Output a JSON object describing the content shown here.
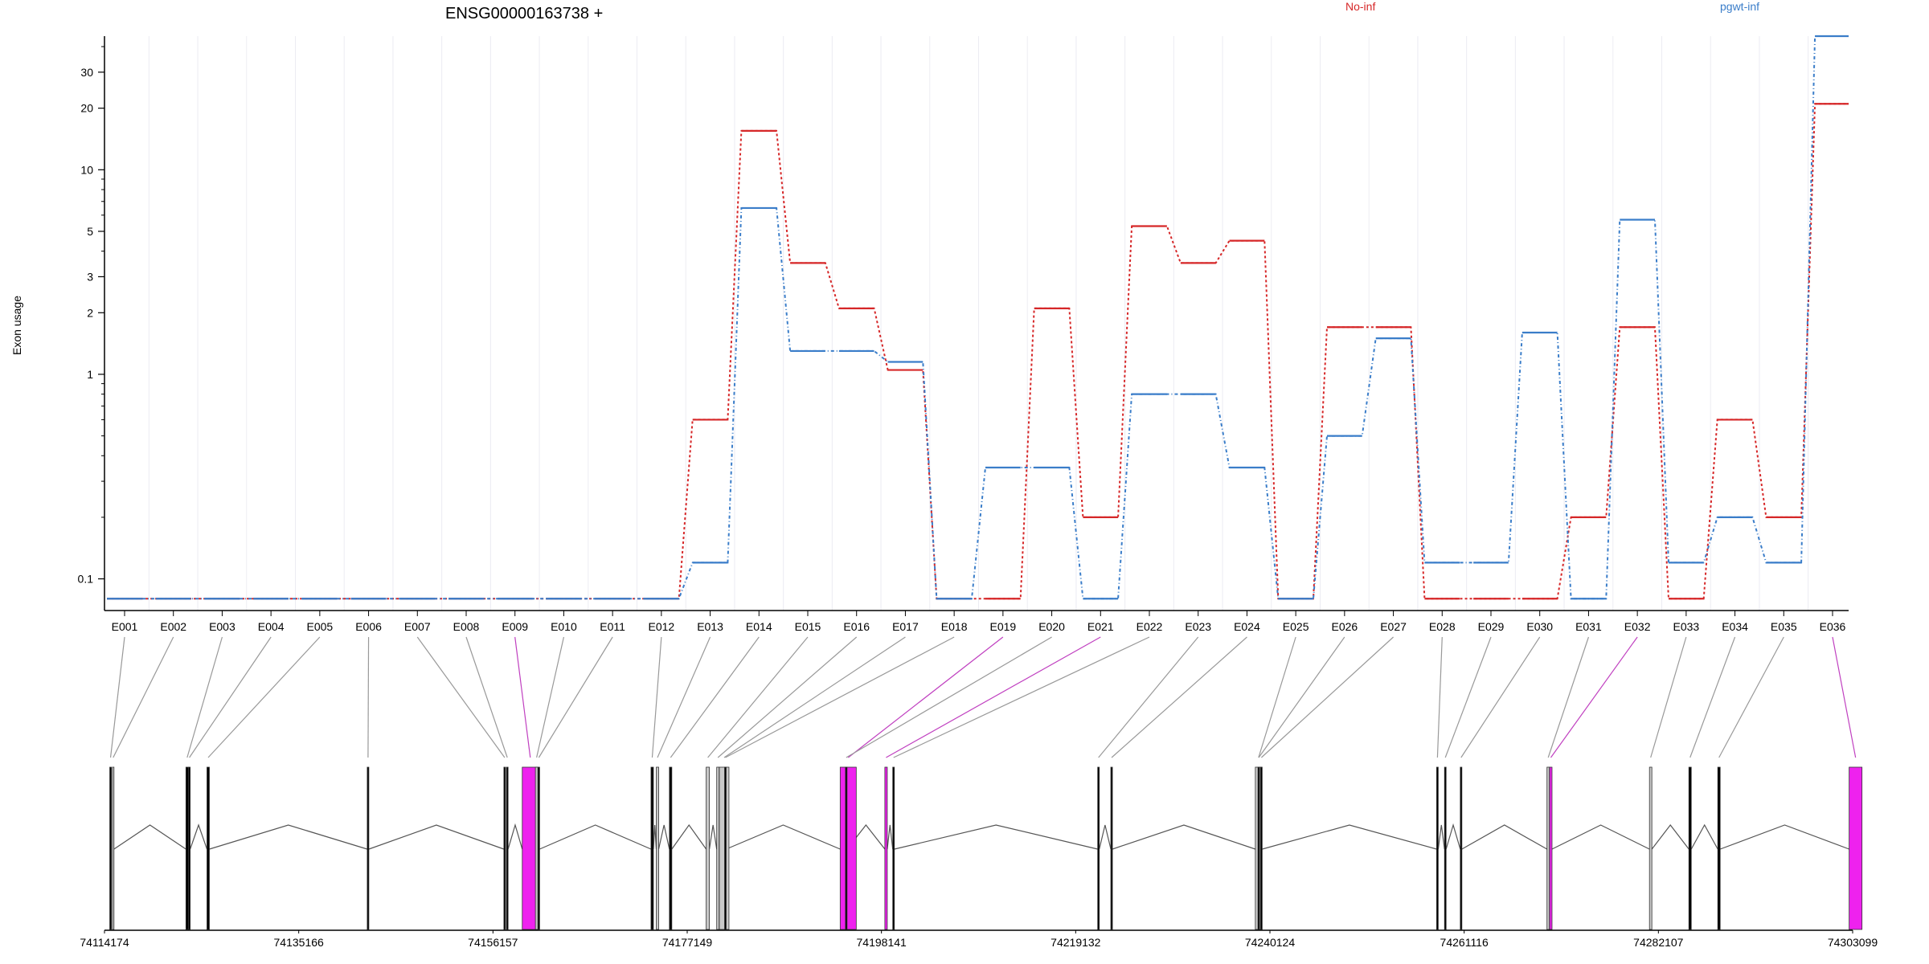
{
  "chart_data": {
    "type": "line",
    "title": "ENSG00000163738 +",
    "ylabel": "Exon usage",
    "xlabel": "",
    "y_scale": "log",
    "ylim": [
      0.07,
      45
    ],
    "yticks": [
      0.1,
      1,
      2,
      3,
      5,
      10,
      20,
      30
    ],
    "categories": [
      "E001",
      "E002",
      "E003",
      "E004",
      "E005",
      "E006",
      "E007",
      "E008",
      "E009",
      "E010",
      "E011",
      "E012",
      "E013",
      "E014",
      "E015",
      "E016",
      "E017",
      "E018",
      "E019",
      "E020",
      "E021",
      "E022",
      "E023",
      "E024",
      "E025",
      "E026",
      "E027",
      "E028",
      "E029",
      "E030",
      "E031",
      "E032",
      "E033",
      "E034",
      "E035",
      "E036"
    ],
    "series": [
      {
        "name": "No-inf",
        "color": "#d62728",
        "style": "dashed",
        "values": [
          0.08,
          0.08,
          0.08,
          0.08,
          0.08,
          0.08,
          0.08,
          0.08,
          0.08,
          0.08,
          0.08,
          0.08,
          0.6,
          15.5,
          3.5,
          2.1,
          1.05,
          0.08,
          0.08,
          2.1,
          0.2,
          5.3,
          3.5,
          4.5,
          0.08,
          1.7,
          1.7,
          0.08,
          0.08,
          0.08,
          0.2,
          1.7,
          0.08,
          0.6,
          0.2,
          21
        ]
      },
      {
        "name": "pgwt-inf",
        "color": "#3a7dc9",
        "style": "dashdot",
        "values": [
          0.08,
          0.08,
          0.08,
          0.08,
          0.08,
          0.08,
          0.08,
          0.08,
          0.08,
          0.08,
          0.08,
          0.08,
          0.12,
          6.5,
          1.3,
          1.3,
          1.15,
          0.08,
          0.35,
          0.35,
          0.08,
          0.8,
          0.8,
          0.35,
          0.08,
          0.5,
          1.5,
          0.12,
          0.12,
          1.6,
          0.08,
          5.7,
          0.12,
          0.2,
          0.12,
          45
        ]
      }
    ],
    "gene_model": {
      "coordinate_labels": [
        "74114174",
        "74135166",
        "74156157",
        "74177149",
        "74198141",
        "74219132",
        "74240124",
        "74261116",
        "74282107",
        "74303099"
      ],
      "genomic_range": [
        74114174,
        74303099
      ],
      "highlight_color": "#ee22ee",
      "exon_colors": {
        "significant": "#ee22ee",
        "partial": "#c8c8c8",
        "normal": "#000000"
      }
    },
    "grid": true,
    "legend_placement": "top-right"
  }
}
